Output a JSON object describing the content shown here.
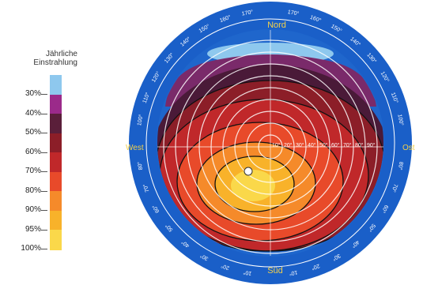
{
  "legend": {
    "title_line1": "Jährliche",
    "title_line2": "Einstrahlung",
    "levels": [
      {
        "label": "30%",
        "color": "#8ec8ee"
      },
      {
        "label": "40%",
        "color": "#9b2a8a"
      },
      {
        "label": "50%",
        "color": "#5a1f3a"
      },
      {
        "label": "60%",
        "color": "#8c1e28"
      },
      {
        "label": "70%",
        "color": "#c0282a"
      },
      {
        "label": "80%",
        "color": "#e84a2a"
      },
      {
        "label": "90%",
        "color": "#f58a2a"
      },
      {
        "label": "95%",
        "color": "#f8b22a"
      },
      {
        "label": "100%",
        "color": "#fad84a"
      }
    ]
  },
  "compass": {
    "north": "Nord",
    "south": "Süd",
    "west": "West",
    "east": "Ost",
    "ring_color": "#1a5fc8",
    "left_labels": [
      "140°",
      "130°",
      "120°",
      "110°",
      "100°",
      "80°",
      "70°",
      "60°",
      "50°",
      "40°",
      "30°",
      "20°",
      "10°"
    ],
    "right_labels": [
      "140°",
      "130°",
      "120°",
      "110°",
      "100°",
      "80°",
      "70°",
      "60°",
      "50°",
      "40°",
      "30°",
      "20°",
      "10°"
    ],
    "top_left_labels": [
      "170°",
      "160°",
      "150°"
    ],
    "top_right_labels": [
      "170°",
      "160°",
      "150°"
    ],
    "elevation_labels": [
      "10°",
      "20°",
      "30°",
      "40°",
      "50°",
      "60°",
      "70°",
      "80°",
      "90°"
    ]
  }
}
